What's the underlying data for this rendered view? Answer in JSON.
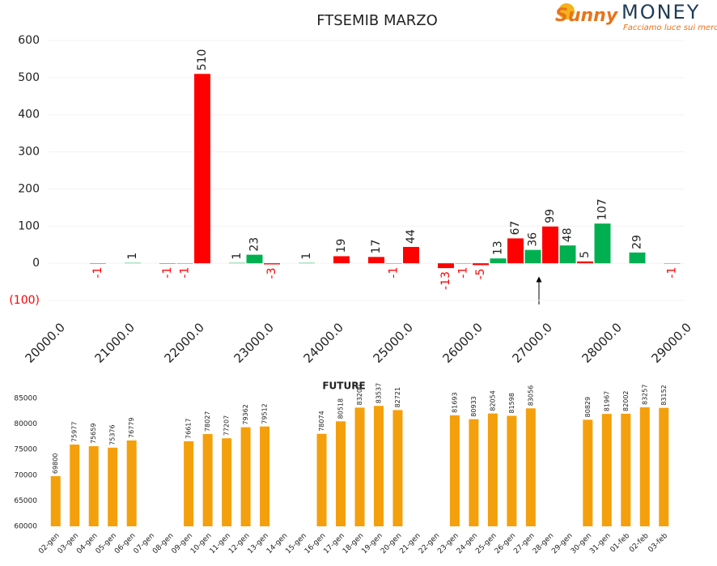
{
  "logo": {
    "brand": "Sunny",
    "name": "MONEY",
    "tagline": "Facciamo luce sui mercati"
  },
  "chart_data": [
    {
      "type": "bar",
      "title": "FTSEMIB MARZO",
      "x": [
        20500,
        21000,
        21500,
        21750,
        22000,
        22500,
        22750,
        23000,
        23500,
        24000,
        24500,
        24750,
        25000,
        25500,
        25750,
        26000,
        26250,
        26500,
        26750,
        27000,
        27250,
        27500,
        27750,
        28250,
        28750
      ],
      "values": [
        -1,
        1,
        -1,
        -1,
        510,
        1,
        23,
        -3,
        1,
        19,
        17,
        -1,
        44,
        -13,
        -1,
        -5,
        13,
        67,
        36,
        99,
        48,
        5,
        107,
        29,
        -1
      ],
      "colors": [
        "#ff0000",
        "#00b050",
        "#ff0000",
        "#00b050",
        "#ff0000",
        "#00b050",
        "#00b050",
        "#ff0000",
        "#00b050",
        "#ff0000",
        "#ff0000",
        "#00b050",
        "#ff0000",
        "#ff0000",
        "#00b050",
        "#ff0000",
        "#00b050",
        "#ff0000",
        "#00b050",
        "#ff0000",
        "#00b050",
        "#ff0000",
        "#00b050",
        "#00b050",
        "#00b050"
      ],
      "negative_label_color": "#ff0000",
      "xlim": [
        19750,
        29250
      ],
      "xticks": [
        {
          "value": 20000,
          "label": "20000.0"
        },
        {
          "value": 21000,
          "label": "21000.0"
        },
        {
          "value": 22000,
          "label": "22000.0"
        },
        {
          "value": 23000,
          "label": "23000.0"
        },
        {
          "value": 24000,
          "label": "24000.0"
        },
        {
          "value": 25000,
          "label": "25000.0"
        },
        {
          "value": 26000,
          "label": "26000.0"
        },
        {
          "value": 27000,
          "label": "27000.0"
        },
        {
          "value": 28000,
          "label": "28000.0"
        },
        {
          "value": 29000,
          "label": "29000.0"
        }
      ],
      "ylim": [
        -100,
        600
      ],
      "yticks": [
        {
          "value": -100,
          "label": "(100)"
        },
        0,
        100,
        200,
        300,
        400,
        500,
        600
      ],
      "grid": true
    },
    {
      "type": "bar",
      "title": "FUTURE",
      "color": "#f4a00c",
      "categories": [
        "02-gen",
        "03-gen",
        "04-gen",
        "05-gen",
        "06-gen",
        "07-gen",
        "08-gen",
        "09-gen",
        "10-gen",
        "11-gen",
        "12-gen",
        "13-gen",
        "14-gen",
        "15-gen",
        "16-gen",
        "17-gen",
        "18-gen",
        "19-gen",
        "20-gen",
        "21-gen",
        "22-gen",
        "23-gen",
        "24-gen",
        "25-gen",
        "26-gen",
        "27-gen",
        "28-gen",
        "29-gen",
        "30-gen",
        "31-gen",
        "01-feb",
        "02-feb",
        "03-feb"
      ],
      "values": [
        69800,
        75977,
        75659,
        75376,
        76779,
        null,
        null,
        76617,
        78027,
        77207,
        79362,
        79512,
        null,
        null,
        78074,
        80518,
        83200,
        83537,
        82721,
        null,
        null,
        81693,
        80933,
        82054,
        81598,
        83056,
        null,
        null,
        80829,
        81967,
        82002,
        83257,
        83152
      ],
      "ylim": [
        60000,
        85000
      ],
      "yticks": [
        60000,
        65000,
        70000,
        75000,
        80000,
        85000
      ]
    }
  ]
}
